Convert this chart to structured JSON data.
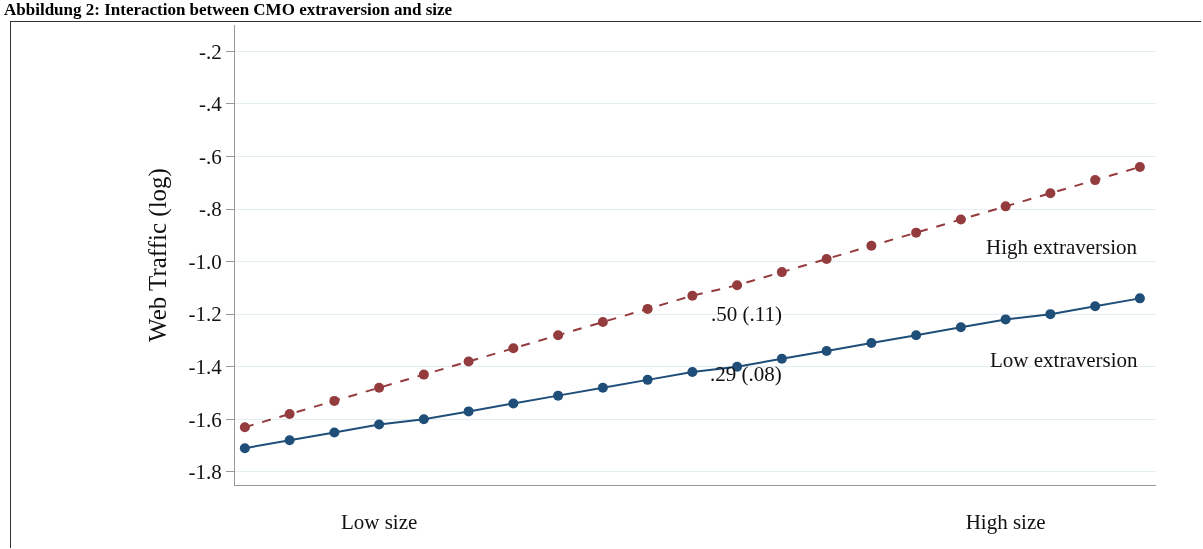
{
  "chart_data": {
    "type": "line",
    "title": "Abbildung 2: Interaction between CMO extraversion and size",
    "ylabel": "Web Traffic (log)",
    "categories": [
      null,
      null,
      null,
      "Low size",
      null,
      null,
      null,
      null,
      null,
      null,
      null,
      null,
      null,
      null,
      null,
      null,
      null,
      "High size",
      null,
      null,
      null
    ],
    "ylim": [
      -1.85,
      -0.1
    ],
    "yticks": [
      {
        "value": -1.8,
        "label": "-1.8"
      },
      {
        "value": -1.6,
        "label": "-1.6"
      },
      {
        "value": -1.4,
        "label": "-1.4"
      },
      {
        "value": -1.2,
        "label": "-1.2"
      },
      {
        "value": -1.0,
        "label": "-1.0"
      },
      {
        "value": -0.8,
        "label": "-.8"
      },
      {
        "value": -0.6,
        "label": "-.6"
      },
      {
        "value": -0.4,
        "label": "-.4"
      },
      {
        "value": -0.2,
        "label": "-.2"
      }
    ],
    "series": [
      {
        "name": "High extraversion",
        "color": "#943b3d",
        "line_style": "dashed",
        "values": [
          -1.63,
          -1.58,
          -1.53,
          -1.48,
          -1.43,
          -1.38,
          -1.33,
          -1.28,
          -1.23,
          -1.18,
          -1.13,
          -1.09,
          -1.04,
          -0.99,
          -0.94,
          -0.89,
          -0.84,
          -0.79,
          -0.74,
          -0.69,
          -0.64
        ]
      },
      {
        "name": "Low extraversion",
        "color": "#1f4e79",
        "line_style": "solid",
        "values": [
          -1.71,
          -1.68,
          -1.65,
          -1.62,
          -1.6,
          -1.57,
          -1.54,
          -1.51,
          -1.48,
          -1.45,
          -1.42,
          -1.4,
          -1.37,
          -1.34,
          -1.31,
          -1.28,
          -1.25,
          -1.22,
          -1.2,
          -1.17,
          -1.14
        ]
      }
    ],
    "annotations": [
      ".50 (.11)",
      ".29 (.08)"
    ],
    "marker": "circle",
    "grid": "y",
    "legend": false
  }
}
